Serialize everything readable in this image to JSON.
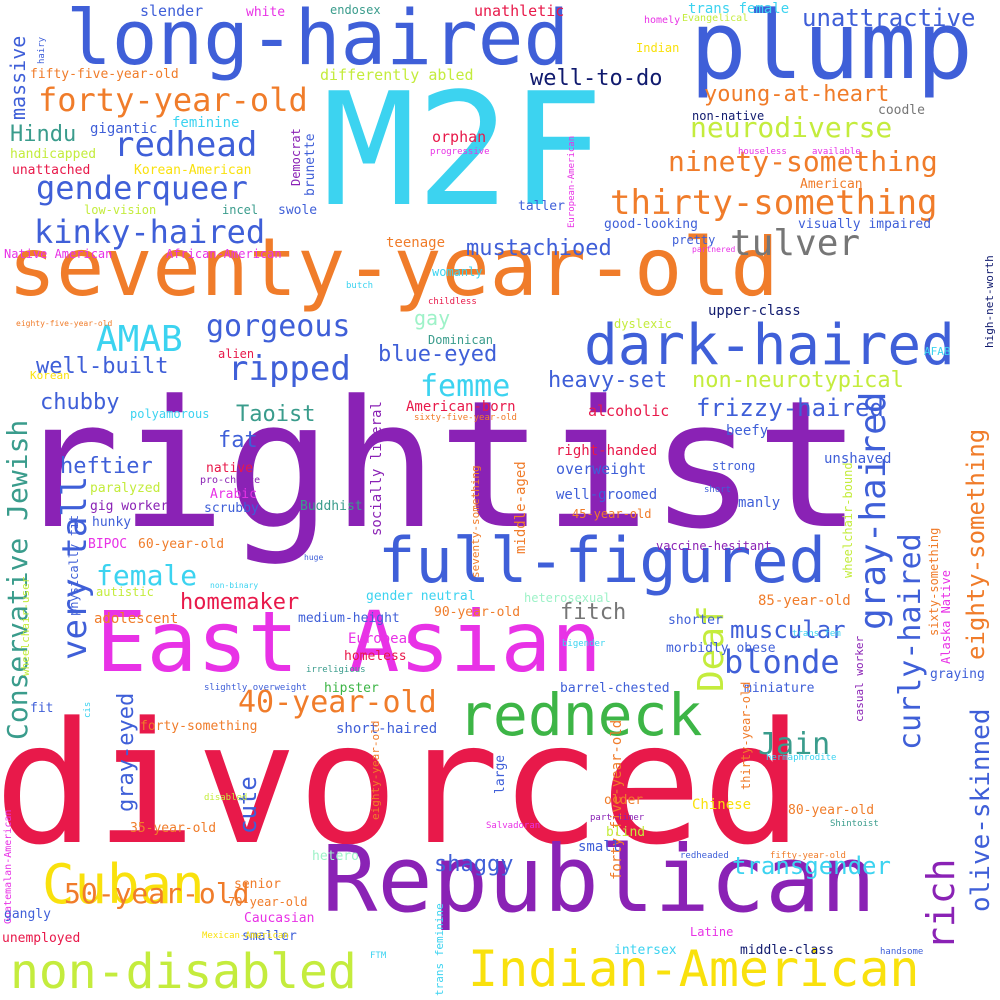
{
  "palette": {
    "red": "#e8194a",
    "purple": "#8a22b5",
    "blue": "#3f5fd8",
    "cyan": "#3cd3f0",
    "orange": "#f07c2a",
    "magenta": "#e832e6",
    "green": "#3db546",
    "yellow": "#f9e10d",
    "lime": "#c4ec3d",
    "teal": "#3a9c8c",
    "gray": "#767676",
    "navy": "#101a6e",
    "mint": "#9ef2c8"
  },
  "words": [
    {
      "text": "divorced",
      "color": "red"
    },
    {
      "text": "rightist",
      "color": "purple"
    },
    {
      "text": "M2F",
      "color": "cyan"
    },
    {
      "text": "seventy-year-old",
      "color": "orange"
    },
    {
      "text": "East Asian",
      "color": "magenta"
    },
    {
      "text": "Republican",
      "color": "purple"
    },
    {
      "text": "plump",
      "color": "blue"
    },
    {
      "text": "long-haired",
      "color": "blue"
    },
    {
      "text": "full-figured",
      "color": "blue"
    },
    {
      "text": "redneck",
      "color": "green"
    },
    {
      "text": "Indian-American",
      "color": "yellow"
    },
    {
      "text": "non-disabled",
      "color": "lime"
    },
    {
      "text": "dark-haired",
      "color": "blue"
    },
    {
      "text": "Cuban",
      "color": "yellow"
    },
    {
      "text": "thirty-something",
      "color": "orange"
    },
    {
      "text": "forty-year-old",
      "color": "orange"
    },
    {
      "text": "kinky-haired",
      "color": "blue"
    },
    {
      "text": "genderqueer",
      "color": "blue"
    },
    {
      "text": "redhead",
      "color": "blue"
    },
    {
      "text": "tulver",
      "color": "gray"
    },
    {
      "text": "ninety-something",
      "color": "orange"
    },
    {
      "text": "neurodiverse",
      "color": "lime"
    },
    {
      "text": "unattractive",
      "color": "blue"
    },
    {
      "text": "young-at-heart",
      "color": "orange"
    },
    {
      "text": "well-to-do",
      "color": "navy"
    },
    {
      "text": "40-year-old",
      "color": "orange"
    },
    {
      "text": "50-year-old",
      "color": "orange"
    },
    {
      "text": "gorgeous",
      "color": "blue"
    },
    {
      "text": "ripped",
      "color": "blue"
    },
    {
      "text": "AMAB",
      "color": "cyan"
    },
    {
      "text": "well-built",
      "color": "blue"
    },
    {
      "text": "femme",
      "color": "cyan"
    },
    {
      "text": "blue-eyed",
      "color": "blue"
    },
    {
      "text": "heavy-set",
      "color": "blue"
    },
    {
      "text": "non-neurotypical",
      "color": "lime"
    },
    {
      "text": "frizzy-haired",
      "color": "blue"
    },
    {
      "text": "mustachioed",
      "color": "blue"
    },
    {
      "text": "gray-haired",
      "color": "blue"
    },
    {
      "text": "curly-haired",
      "color": "blue"
    },
    {
      "text": "eighty-something",
      "color": "orange"
    },
    {
      "text": "olive-skinned",
      "color": "blue"
    },
    {
      "text": "rich",
      "color": "purple"
    },
    {
      "text": "blonde",
      "color": "blue"
    },
    {
      "text": "muscular",
      "color": "blue"
    },
    {
      "text": "Jain",
      "color": "teal"
    },
    {
      "text": "Deaf",
      "color": "lime"
    },
    {
      "text": "transgender",
      "color": "cyan"
    },
    {
      "text": "shaggy",
      "color": "blue"
    },
    {
      "text": "very tall",
      "color": "blue"
    },
    {
      "text": "Conservative Jewish",
      "color": "teal"
    },
    {
      "text": "female",
      "color": "cyan"
    },
    {
      "text": "homemaker",
      "color": "red"
    },
    {
      "text": "fitch",
      "color": "gray"
    },
    {
      "text": "gray-eyed",
      "color": "blue"
    },
    {
      "text": "cute",
      "color": "blue"
    },
    {
      "text": "Taoist",
      "color": "teal"
    },
    {
      "text": "chubby",
      "color": "blue"
    },
    {
      "text": "heftier",
      "color": "blue"
    },
    {
      "text": "fat",
      "color": "blue"
    },
    {
      "text": "Hindu",
      "color": "teal"
    },
    {
      "text": "massive",
      "color": "blue"
    },
    {
      "text": "slender",
      "color": "blue"
    },
    {
      "text": "white",
      "color": "magenta"
    },
    {
      "text": "endosex",
      "color": "teal"
    },
    {
      "text": "unathletic",
      "color": "red"
    },
    {
      "text": "trans female",
      "color": "cyan"
    },
    {
      "text": "homely",
      "color": "magenta"
    },
    {
      "text": "Evangelical",
      "color": "lime"
    },
    {
      "text": "Indian",
      "color": "yellow"
    },
    {
      "text": "fifty-five-year-old",
      "color": "orange"
    },
    {
      "text": "differently abled",
      "color": "lime"
    },
    {
      "text": "hairy",
      "color": "blue"
    },
    {
      "text": "gigantic",
      "color": "blue"
    },
    {
      "text": "feminine",
      "color": "cyan"
    },
    {
      "text": "handicapped",
      "color": "lime"
    },
    {
      "text": "unattached",
      "color": "red"
    },
    {
      "text": "Korean-American",
      "color": "yellow"
    },
    {
      "text": "low-vision",
      "color": "lime"
    },
    {
      "text": "incel",
      "color": "teal"
    },
    {
      "text": "swole",
      "color": "blue"
    },
    {
      "text": "Democrat",
      "color": "purple"
    },
    {
      "text": "brunette",
      "color": "blue"
    },
    {
      "text": "orphan",
      "color": "red"
    },
    {
      "text": "progressive",
      "color": "magenta"
    },
    {
      "text": "European-American",
      "color": "magenta"
    },
    {
      "text": "non-native",
      "color": "navy"
    },
    {
      "text": "coodle",
      "color": "gray"
    },
    {
      "text": "houseless",
      "color": "magenta"
    },
    {
      "text": "available",
      "color": "magenta"
    },
    {
      "text": "American",
      "color": "orange"
    },
    {
      "text": "taller",
      "color": "blue"
    },
    {
      "text": "good-looking",
      "color": "blue"
    },
    {
      "text": "pretty",
      "color": "blue"
    },
    {
      "text": "visually impaired",
      "color": "blue"
    },
    {
      "text": "partnered",
      "color": "magenta"
    },
    {
      "text": "teenage",
      "color": "orange"
    },
    {
      "text": "Native American",
      "color": "magenta"
    },
    {
      "text": "African-American",
      "color": "magenta"
    },
    {
      "text": "high-net-worth",
      "color": "navy"
    },
    {
      "text": "womanly",
      "color": "cyan"
    },
    {
      "text": "butch",
      "color": "cyan"
    },
    {
      "text": "childless",
      "color": "red"
    },
    {
      "text": "gay",
      "color": "mint"
    },
    {
      "text": "upper-class",
      "color": "navy"
    },
    {
      "text": "eighty-five-year-old",
      "color": "orange"
    },
    {
      "text": "Dominican",
      "color": "teal"
    },
    {
      "text": "dyslexic",
      "color": "lime"
    },
    {
      "text": "AFAB",
      "color": "cyan"
    },
    {
      "text": "alien",
      "color": "red"
    },
    {
      "text": "Korean",
      "color": "yellow"
    },
    {
      "text": "polyamorous",
      "color": "cyan"
    },
    {
      "text": "American-born",
      "color": "red"
    },
    {
      "text": "sixty-five-year-old",
      "color": "orange"
    },
    {
      "text": "alcoholic",
      "color": "red"
    },
    {
      "text": "beefy",
      "color": "blue"
    },
    {
      "text": "right-handed",
      "color": "red"
    },
    {
      "text": "socially liberal",
      "color": "purple"
    },
    {
      "text": "overweight",
      "color": "blue"
    },
    {
      "text": "unshaved",
      "color": "blue"
    },
    {
      "text": "strong",
      "color": "blue"
    },
    {
      "text": "native",
      "color": "red"
    },
    {
      "text": "pro-choice",
      "color": "purple"
    },
    {
      "text": "Arabic",
      "color": "magenta"
    },
    {
      "text": "paralyzed",
      "color": "lime"
    },
    {
      "text": "gig worker",
      "color": "purple"
    },
    {
      "text": "scrubby",
      "color": "blue"
    },
    {
      "text": "Buddhist",
      "color": "teal"
    },
    {
      "text": "well-groomed",
      "color": "blue"
    },
    {
      "text": "middle-aged",
      "color": "orange"
    },
    {
      "text": "45-year-old",
      "color": "orange"
    },
    {
      "text": "wheelchair-bound",
      "color": "lime"
    },
    {
      "text": "short",
      "color": "blue"
    },
    {
      "text": "manly",
      "color": "blue"
    },
    {
      "text": "hunky",
      "color": "blue"
    },
    {
      "text": "BIPOC",
      "color": "magenta"
    },
    {
      "text": "60-year-old",
      "color": "orange"
    },
    {
      "text": "vaccine-hesitant",
      "color": "purple"
    },
    {
      "text": "seventy-something",
      "color": "orange"
    },
    {
      "text": "huge",
      "color": "blue"
    },
    {
      "text": "heterosexual",
      "color": "mint"
    },
    {
      "text": "physically fit",
      "color": "blue"
    },
    {
      "text": "non-binary",
      "color": "cyan"
    },
    {
      "text": "autistic",
      "color": "lime"
    },
    {
      "text": "gender neutral",
      "color": "cyan"
    },
    {
      "text": "85-year-old",
      "color": "orange"
    },
    {
      "text": "sixty-something",
      "color": "orange"
    },
    {
      "text": "Alaska Native",
      "color": "magenta"
    },
    {
      "text": "adolescent",
      "color": "orange"
    },
    {
      "text": "medium-height",
      "color": "blue"
    },
    {
      "text": "90-year-old",
      "color": "orange"
    },
    {
      "text": "shorter",
      "color": "blue"
    },
    {
      "text": "trans fem",
      "color": "cyan"
    },
    {
      "text": "casual worker",
      "color": "purple"
    },
    {
      "text": "wheelchair-user",
      "color": "lime"
    },
    {
      "text": "European",
      "color": "magenta"
    },
    {
      "text": "homeless",
      "color": "red"
    },
    {
      "text": "bigender",
      "color": "cyan"
    },
    {
      "text": "morbidly obese",
      "color": "blue"
    },
    {
      "text": "irreligious",
      "color": "teal"
    },
    {
      "text": "hipster",
      "color": "green"
    },
    {
      "text": "miniature",
      "color": "blue"
    },
    {
      "text": "slightly overweight",
      "color": "blue"
    },
    {
      "text": "barrel-chested",
      "color": "blue"
    },
    {
      "text": "graying",
      "color": "blue"
    },
    {
      "text": "fit",
      "color": "blue"
    },
    {
      "text": "cis",
      "color": "cyan"
    },
    {
      "text": "thirty-year-old",
      "color": "orange"
    },
    {
      "text": "hermaphrodite",
      "color": "cyan"
    },
    {
      "text": "forty-something",
      "color": "orange"
    },
    {
      "text": "short-haired",
      "color": "blue"
    },
    {
      "text": "Guatemalan-American",
      "color": "magenta"
    },
    {
      "text": "eighty-year-old",
      "color": "orange"
    },
    {
      "text": "large",
      "color": "blue"
    },
    {
      "text": "forty-five-year-old",
      "color": "orange"
    },
    {
      "text": "disabled",
      "color": "lime"
    },
    {
      "text": "older",
      "color": "orange"
    },
    {
      "text": "Chinese",
      "color": "yellow"
    },
    {
      "text": "80-year-old",
      "color": "orange"
    },
    {
      "text": "part-timer",
      "color": "purple"
    },
    {
      "text": "Shintoist",
      "color": "teal"
    },
    {
      "text": "blind",
      "color": "lime"
    },
    {
      "text": "35-year-old",
      "color": "orange"
    },
    {
      "text": "Salvadoran",
      "color": "magenta"
    },
    {
      "text": "small",
      "color": "blue"
    },
    {
      "text": "redheaded",
      "color": "blue"
    },
    {
      "text": "fifty-year-old",
      "color": "orange"
    },
    {
      "text": "hetero",
      "color": "mint"
    },
    {
      "text": "senior",
      "color": "orange"
    },
    {
      "text": "70-year-old",
      "color": "orange"
    },
    {
      "text": "Caucasian",
      "color": "magenta"
    },
    {
      "text": "gangly",
      "color": "blue"
    },
    {
      "text": "smaller",
      "color": "blue"
    },
    {
      "text": "unemployed",
      "color": "red"
    },
    {
      "text": "Mexican-American",
      "color": "yellow"
    },
    {
      "text": "FTM",
      "color": "cyan"
    },
    {
      "text": "trans feminine",
      "color": "cyan"
    },
    {
      "text": "intersex",
      "color": "cyan"
    },
    {
      "text": "Latine",
      "color": "magenta"
    },
    {
      "text": "middle-class",
      "color": "navy"
    },
    {
      "text": "handsome",
      "color": "blue"
    }
  ]
}
